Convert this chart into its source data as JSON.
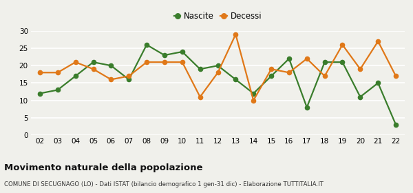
{
  "years": [
    "02",
    "03",
    "04",
    "05",
    "06",
    "07",
    "08",
    "09",
    "10",
    "11",
    "12",
    "13",
    "14",
    "15",
    "16",
    "17",
    "18",
    "19",
    "20",
    "21",
    "22"
  ],
  "nascite": [
    12,
    13,
    17,
    21,
    20,
    16,
    26,
    23,
    24,
    19,
    20,
    16,
    12,
    17,
    22,
    8,
    21,
    21,
    11,
    15,
    3
  ],
  "decessi": [
    18,
    18,
    21,
    19,
    16,
    17,
    21,
    21,
    21,
    11,
    18,
    29,
    10,
    19,
    18,
    22,
    17,
    26,
    19,
    27,
    17
  ],
  "nascite_color": "#3a7d2c",
  "decessi_color": "#e07818",
  "background_color": "#f0f0eb",
  "grid_color": "#ffffff",
  "title": "Movimento naturale della popolazione",
  "subtitle": "COMUNE DI SECUGNAGO (LO) - Dati ISTAT (bilancio demografico 1 gen-31 dic) - Elaborazione TUTTITALIA.IT",
  "ylim": [
    0,
    30
  ],
  "yticks": [
    0,
    5,
    10,
    15,
    20,
    25,
    30
  ],
  "legend_nascite": "Nascite",
  "legend_decessi": "Decessi",
  "marker_size": 4.5,
  "line_width": 1.6
}
